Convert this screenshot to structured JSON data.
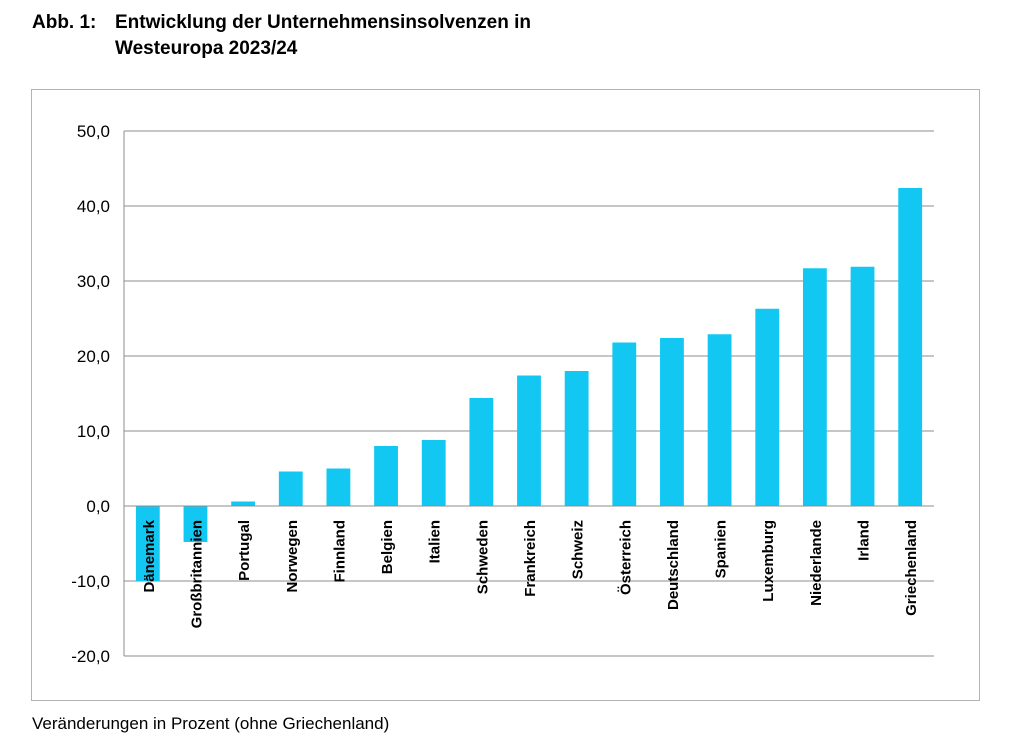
{
  "title": {
    "prefix": "Abb. 1:",
    "line1": "Entwicklung der Unternehmensinsolvenzen in",
    "line2": "Westeuropa 2023/24"
  },
  "caption": "Veränderungen in Prozent (ohne Griechenland)",
  "colors": {
    "bar": "#12C8F2",
    "grid": "#8c8c8c",
    "frame": "#b3b3b3"
  },
  "chart_data": {
    "type": "bar",
    "title": "Entwicklung der Unternehmensinsolvenzen in Westeuropa 2023/24",
    "xlabel": "",
    "ylabel": "",
    "ylim": [
      -20,
      50
    ],
    "yticks": [
      50,
      40,
      30,
      20,
      10,
      0,
      -10,
      -20
    ],
    "ytick_labels": [
      "50,0",
      "40,0",
      "30,0",
      "20,0",
      "10,0",
      "0,0",
      "-10,0",
      "-20,0"
    ],
    "grid": true,
    "categories": [
      "Dänemark",
      "Großbritannien",
      "Portugal",
      "Norwegen",
      "Finnland",
      "Belgien",
      "Italien",
      "Schweden",
      "Frankreich",
      "Schweiz",
      "Österreich",
      "Deutschland",
      "Spanien",
      "Luxemburg",
      "Niederlande",
      "Irland",
      "Griechenland"
    ],
    "values": [
      -10.0,
      -4.8,
      0.6,
      4.6,
      5.0,
      8.0,
      8.8,
      14.4,
      17.4,
      18.0,
      21.8,
      22.4,
      22.9,
      26.3,
      31.7,
      31.9,
      42.4
    ]
  }
}
